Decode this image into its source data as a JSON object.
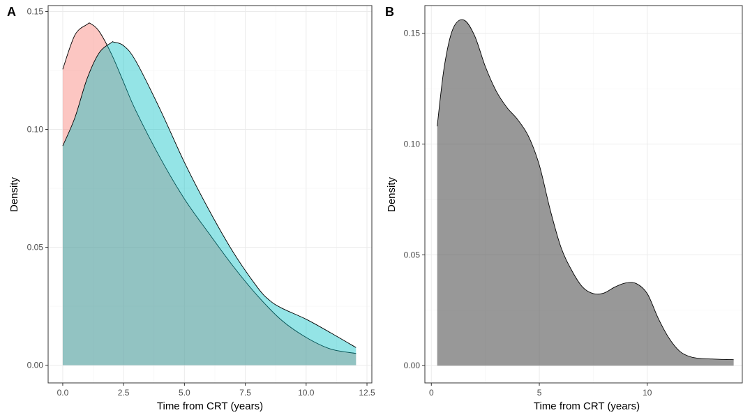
{
  "colors": {
    "panel_a_series_1": "#F8766D",
    "panel_a_series_2": "#00BFC4",
    "panel_b_series": "#4D4D4D"
  },
  "chart_data": [
    {
      "type": "area",
      "panel_tag": "A",
      "xlabel": "Time from CRT (years)",
      "ylabel": "Density",
      "xlim": [
        -0.6,
        12.7
      ],
      "ylim": [
        -0.0075,
        0.1525
      ],
      "x_ticks": [
        0,
        2.5,
        5,
        7.5,
        10,
        12.5
      ],
      "x_tick_labels": [
        "0.0",
        "2.5",
        "5.0",
        "7.5",
        "10.0",
        "12.5"
      ],
      "y_ticks": [
        0,
        0.05,
        0.1,
        0.15
      ],
      "y_tick_labels": [
        "0.00",
        "0.05",
        "0.10",
        "0.15"
      ],
      "grid": true,
      "legend": "none",
      "series": [
        {
          "x": [
            0,
            0.5,
            1.0,
            1.15,
            1.5,
            2.0,
            2.5,
            3.0,
            4.0,
            5.0,
            6.0,
            7.0,
            8.0,
            9.0,
            10.0,
            11.0,
            12.05
          ],
          "y": [
            0.1255,
            0.14,
            0.1445,
            0.1448,
            0.1415,
            0.132,
            0.12,
            0.108,
            0.088,
            0.0705,
            0.056,
            0.042,
            0.0295,
            0.019,
            0.0118,
            0.0069,
            0.005
          ]
        },
        {
          "x": [
            0,
            0.5,
            1.0,
            1.5,
            2.0,
            2.1,
            2.5,
            3.0,
            4.0,
            5.0,
            6.0,
            7.0,
            8.0,
            8.5,
            9.0,
            10.0,
            11.0,
            12.05
          ],
          "y": [
            0.093,
            0.105,
            0.1215,
            0.1325,
            0.1368,
            0.137,
            0.1355,
            0.129,
            0.1085,
            0.086,
            0.066,
            0.048,
            0.033,
            0.0275,
            0.0242,
            0.0195,
            0.0138,
            0.0075
          ]
        }
      ]
    },
    {
      "type": "area",
      "panel_tag": "B",
      "xlabel": "Time from CRT (years)",
      "ylabel": "Density",
      "xlim": [
        -0.3,
        14.4
      ],
      "ylim": [
        -0.0078,
        0.1625
      ],
      "x_ticks": [
        0,
        5,
        10
      ],
      "x_tick_labels": [
        "0",
        "5",
        "10"
      ],
      "y_ticks": [
        0,
        0.05,
        0.1,
        0.15
      ],
      "y_tick_labels": [
        "0.00",
        "0.05",
        "0.10",
        "0.15"
      ],
      "grid": true,
      "legend": "none",
      "series": [
        {
          "x": [
            0.27,
            0.6,
            1.0,
            1.5,
            2.0,
            2.5,
            3.0,
            3.5,
            4.0,
            4.5,
            5.0,
            5.5,
            6.0,
            6.5,
            7.0,
            7.5,
            8.0,
            8.5,
            9.0,
            9.5,
            10.0,
            10.5,
            11.0,
            11.5,
            12.0,
            12.5,
            13.0,
            13.5,
            14.0
          ],
          "y": [
            0.108,
            0.135,
            0.152,
            0.156,
            0.149,
            0.135,
            0.124,
            0.1165,
            0.111,
            0.1035,
            0.0905,
            0.0705,
            0.0535,
            0.043,
            0.0355,
            0.0325,
            0.0328,
            0.0355,
            0.0373,
            0.037,
            0.0325,
            0.0215,
            0.0125,
            0.0065,
            0.004,
            0.0032,
            0.003,
            0.0028,
            0.0027
          ]
        }
      ]
    }
  ]
}
